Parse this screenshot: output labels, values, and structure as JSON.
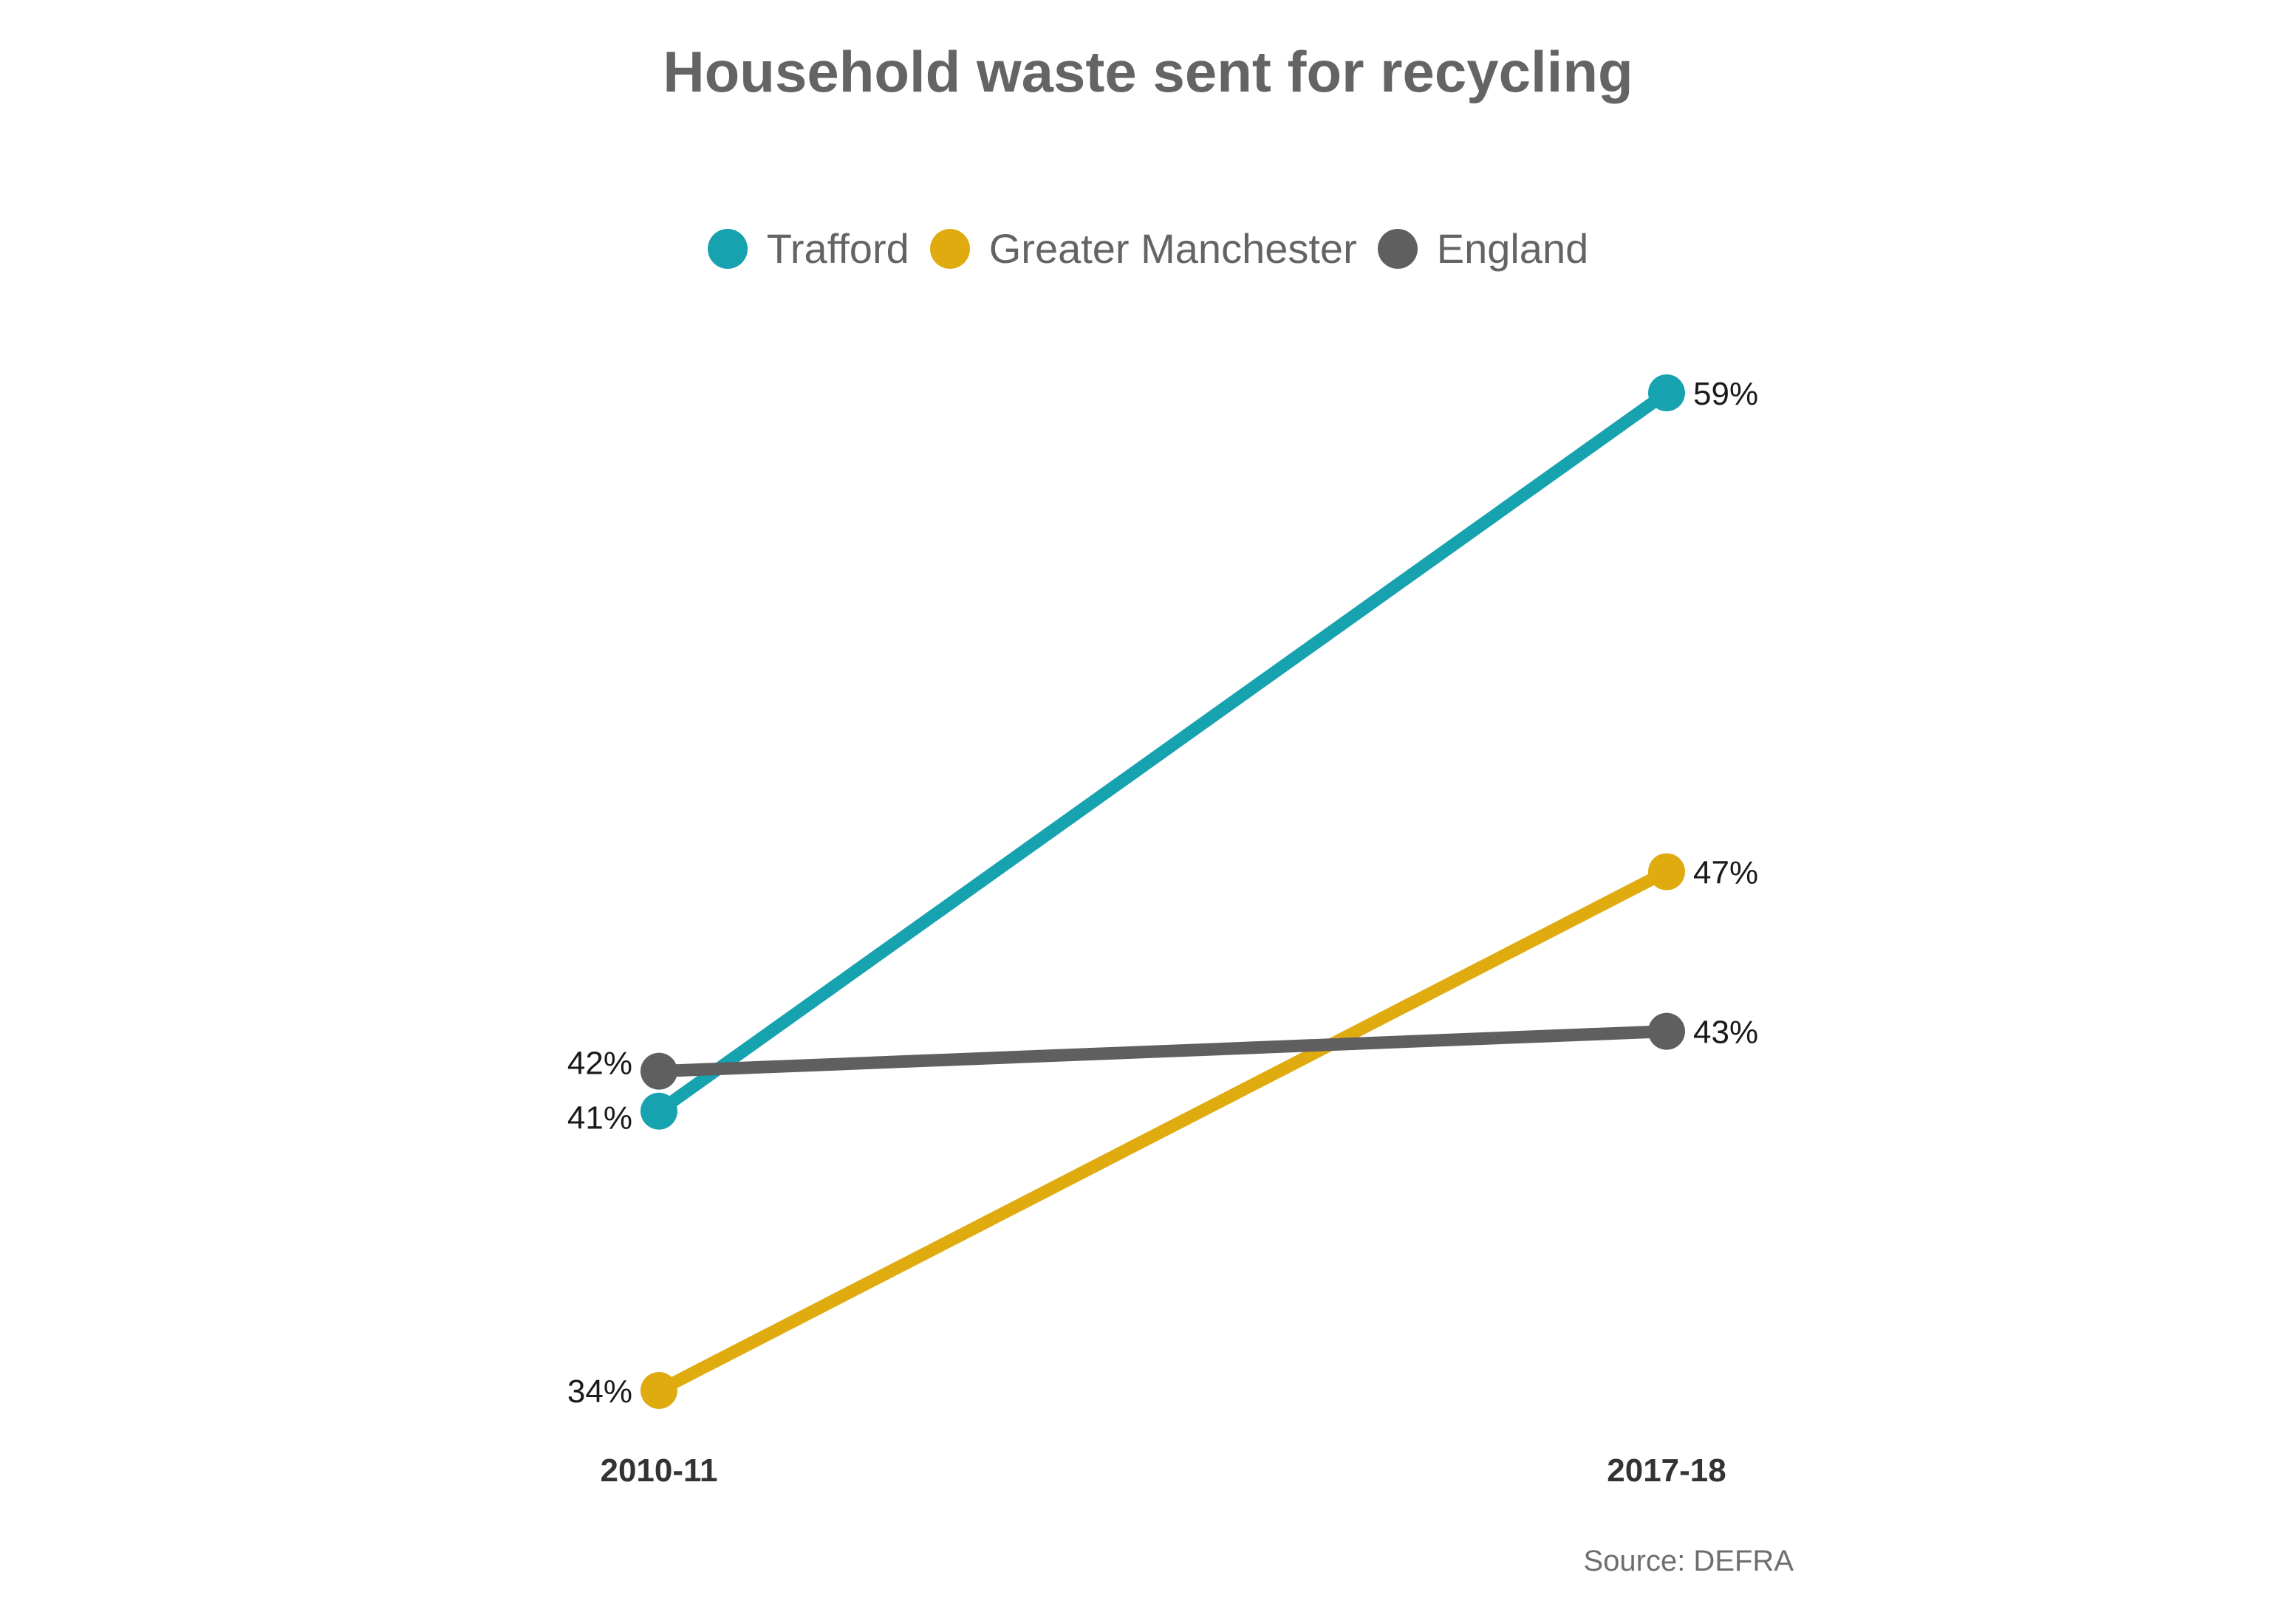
{
  "chart_data": {
    "type": "line",
    "title": "Household waste sent for recycling",
    "categories": [
      "2010-11",
      "2017-18"
    ],
    "series": [
      {
        "name": "Trafford",
        "color": "#17a2b0",
        "values": [
          41,
          59
        ],
        "labels": [
          "41%",
          "59%"
        ]
      },
      {
        "name": "Greater Manchester",
        "color": "#dfab0f",
        "values": [
          34,
          47
        ],
        "labels": [
          "34%",
          "47%"
        ]
      },
      {
        "name": "England",
        "color": "#5f5f5f",
        "values": [
          42,
          43
        ],
        "labels": [
          "42%",
          "43%"
        ]
      }
    ],
    "ylim": [
      34,
      59
    ],
    "grid": false,
    "legend_position": "top-center",
    "source": "Source: DEFRA"
  }
}
